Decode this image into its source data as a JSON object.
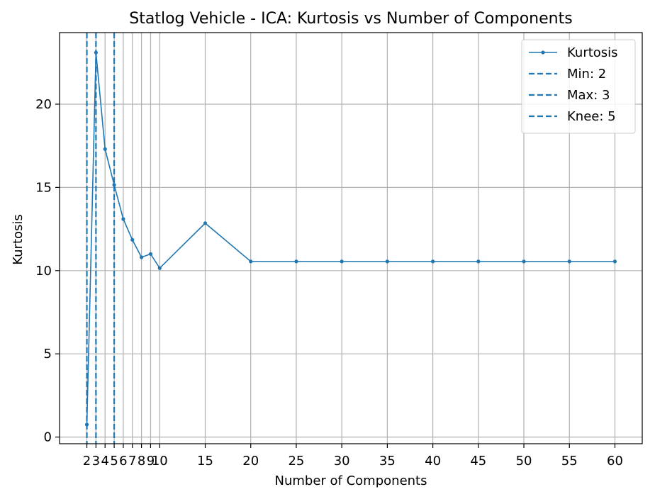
{
  "chart_data": {
    "type": "line",
    "title": "Statlog Vehicle - ICA: Kurtosis vs Number of Components",
    "xlabel": "Number of Components",
    "ylabel": "Kurtosis",
    "xlim": [
      -1.0,
      63.0
    ],
    "ylim": [
      -0.4,
      24.3
    ],
    "grid": true,
    "x_ticks": [
      2,
      3,
      4,
      5,
      6,
      7,
      8,
      9,
      10,
      15,
      20,
      25,
      30,
      35,
      40,
      45,
      50,
      55,
      60
    ],
    "y_ticks": [
      0,
      5,
      10,
      15,
      20
    ],
    "series": [
      {
        "name": "Kurtosis",
        "color": "#1f77b4",
        "x": [
          2,
          3,
          4,
          5,
          6,
          7,
          8,
          9,
          10,
          15,
          20,
          25,
          30,
          35,
          40,
          45,
          50,
          55,
          60
        ],
        "values": [
          0.75,
          23.1,
          17.3,
          15.15,
          13.1,
          11.85,
          10.8,
          11.0,
          10.15,
          12.85,
          10.55,
          10.55,
          10.55,
          10.55,
          10.55,
          10.55,
          10.55,
          10.55,
          10.55
        ]
      }
    ],
    "vlines": [
      {
        "name": "Min: 2",
        "x": 2,
        "color": "#1f77b4"
      },
      {
        "name": "Max: 3",
        "x": 3,
        "color": "#1f77b4"
      },
      {
        "name": "Knee: 5",
        "x": 5,
        "color": "#1f77b4"
      }
    ],
    "legend_position": "top-right"
  }
}
